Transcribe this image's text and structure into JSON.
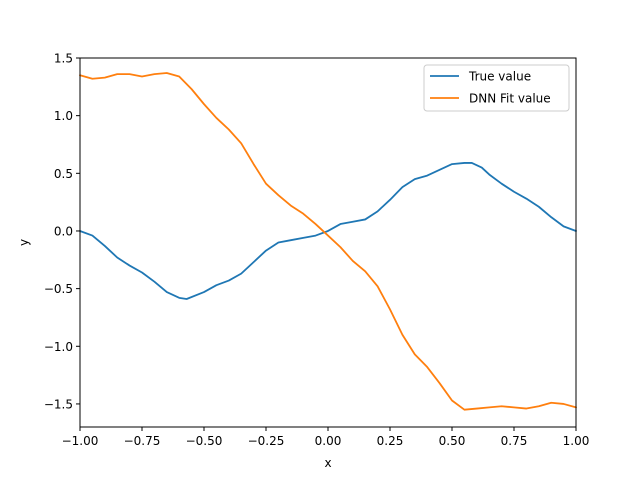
{
  "chart_data": {
    "type": "line",
    "xlabel": "x",
    "ylabel": "y",
    "xlim": [
      -1.0,
      1.0
    ],
    "ylim": [
      -1.7,
      1.5
    ],
    "xticks": [
      -1.0,
      -0.75,
      -0.5,
      -0.25,
      0.0,
      0.25,
      0.5,
      0.75,
      1.0
    ],
    "xtick_labels": [
      "−1.00",
      "−0.75",
      "−0.50",
      "−0.25",
      "0.00",
      "0.25",
      "0.50",
      "0.75",
      "1.00"
    ],
    "yticks": [
      -1.5,
      -1.0,
      -0.5,
      0.0,
      0.5,
      1.0,
      1.5
    ],
    "ytick_labels": [
      "−1.5",
      "−1.0",
      "−0.5",
      "0.0",
      "0.5",
      "1.0",
      "1.5"
    ],
    "grid": false,
    "legend_position": "top-right",
    "series": [
      {
        "name": "True value",
        "color": "#1f77b4",
        "x": [
          -1.0,
          -0.95,
          -0.9,
          -0.85,
          -0.8,
          -0.75,
          -0.7,
          -0.65,
          -0.6,
          -0.57,
          -0.5,
          -0.45,
          -0.4,
          -0.35,
          -0.3,
          -0.25,
          -0.2,
          -0.15,
          -0.1,
          -0.05,
          0.0,
          0.05,
          0.1,
          0.15,
          0.2,
          0.25,
          0.3,
          0.35,
          0.4,
          0.45,
          0.5,
          0.55,
          0.58,
          0.62,
          0.65,
          0.7,
          0.75,
          0.8,
          0.85,
          0.9,
          0.95,
          1.0
        ],
        "y": [
          0.0,
          -0.04,
          -0.13,
          -0.23,
          -0.3,
          -0.36,
          -0.44,
          -0.53,
          -0.58,
          -0.59,
          -0.53,
          -0.47,
          -0.43,
          -0.37,
          -0.27,
          -0.17,
          -0.1,
          -0.08,
          -0.06,
          -0.04,
          0.0,
          0.06,
          0.08,
          0.1,
          0.17,
          0.27,
          0.38,
          0.45,
          0.48,
          0.53,
          0.58,
          0.59,
          0.59,
          0.55,
          0.49,
          0.41,
          0.34,
          0.28,
          0.21,
          0.12,
          0.04,
          0.0
        ]
      },
      {
        "name": "DNN Fit value",
        "color": "#ff7f0e",
        "x": [
          -1.0,
          -0.95,
          -0.9,
          -0.85,
          -0.8,
          -0.75,
          -0.7,
          -0.65,
          -0.6,
          -0.55,
          -0.5,
          -0.45,
          -0.4,
          -0.35,
          -0.3,
          -0.25,
          -0.2,
          -0.15,
          -0.1,
          -0.05,
          0.0,
          0.05,
          0.1,
          0.15,
          0.2,
          0.25,
          0.3,
          0.35,
          0.4,
          0.45,
          0.5,
          0.55,
          0.6,
          0.65,
          0.7,
          0.75,
          0.8,
          0.85,
          0.9,
          0.95,
          1.0
        ],
        "y": [
          1.35,
          1.32,
          1.33,
          1.36,
          1.36,
          1.34,
          1.36,
          1.37,
          1.34,
          1.23,
          1.1,
          0.98,
          0.88,
          0.76,
          0.58,
          0.41,
          0.31,
          0.22,
          0.15,
          0.06,
          -0.04,
          -0.14,
          -0.26,
          -0.35,
          -0.48,
          -0.68,
          -0.9,
          -1.07,
          -1.18,
          -1.32,
          -1.47,
          -1.55,
          -1.54,
          -1.53,
          -1.52,
          -1.53,
          -1.54,
          -1.52,
          -1.49,
          -1.5,
          -1.53
        ]
      }
    ]
  }
}
